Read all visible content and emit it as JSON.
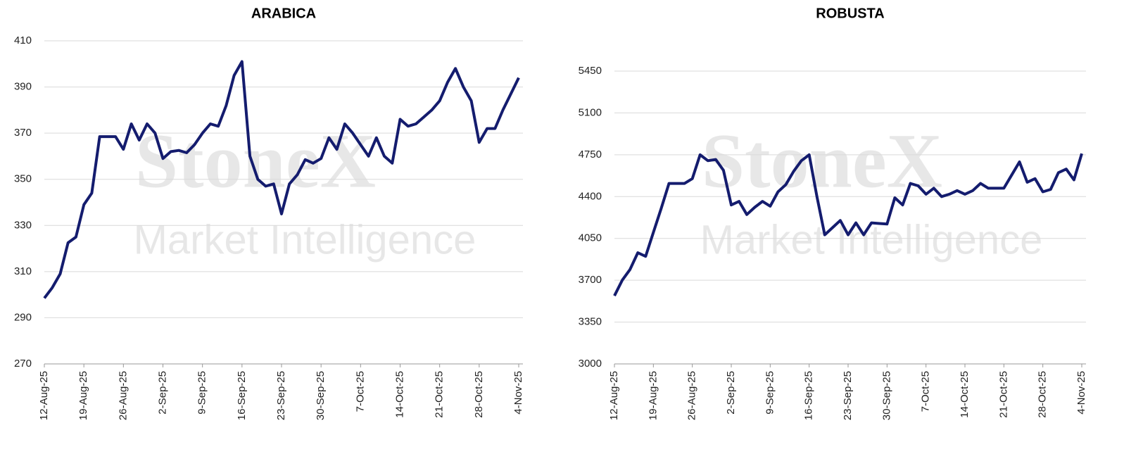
{
  "chart_data": [
    {
      "type": "line",
      "title": "ARABICA",
      "watermark": [
        "StoneX",
        "Market Intelligence"
      ],
      "categories": [
        "12-Aug-25",
        null,
        null,
        null,
        null,
        "19-Aug-25",
        null,
        null,
        null,
        null,
        "26-Aug-25",
        null,
        null,
        null,
        null,
        "2-Sep-25",
        null,
        null,
        null,
        null,
        "9-Sep-25",
        null,
        null,
        null,
        null,
        "16-Sep-25",
        null,
        null,
        null,
        null,
        "23-Sep-25",
        null,
        null,
        null,
        null,
        "30-Sep-25",
        null,
        null,
        null,
        null,
        "7-Oct-25",
        null,
        null,
        null,
        null,
        "14-Oct-25",
        null,
        null,
        null,
        null,
        "21-Oct-25",
        null,
        null,
        null,
        null,
        "28-Oct-25",
        null,
        null,
        null,
        null,
        "4-Nov-25"
      ],
      "series": [
        {
          "name": "Arabica",
          "color": "#141c6e",
          "values": [
            298.5,
            303,
            309,
            322.5,
            325,
            339,
            344,
            368.5,
            368.5,
            368.5,
            363,
            374,
            367,
            374,
            370,
            359,
            362,
            362.5,
            361.5,
            365,
            370,
            374,
            373,
            382,
            395,
            401,
            360,
            350,
            347,
            348,
            335,
            348,
            352,
            358.5,
            357,
            359,
            368,
            363,
            374,
            370,
            365,
            360,
            368,
            360,
            357,
            376,
            373,
            374,
            377,
            380,
            384,
            392,
            398,
            390,
            384,
            366,
            372,
            372,
            380,
            387,
            394
          ]
        }
      ],
      "ylim": [
        270,
        410
      ],
      "yticks": [
        270,
        290,
        310,
        330,
        350,
        370,
        390,
        410
      ],
      "grid": true
    },
    {
      "type": "line",
      "title": "ROBUSTA",
      "watermark": [
        "StoneX",
        "Market Intelligence"
      ],
      "categories": [
        "12-Aug-25",
        null,
        null,
        null,
        null,
        "19-Aug-25",
        null,
        null,
        null,
        null,
        "26-Aug-25",
        null,
        null,
        null,
        null,
        "2-Sep-25",
        null,
        null,
        null,
        null,
        "9-Sep-25",
        null,
        null,
        null,
        null,
        "16-Sep-25",
        null,
        null,
        null,
        null,
        "23-Sep-25",
        null,
        null,
        null,
        null,
        "30-Sep-25",
        null,
        null,
        null,
        null,
        "7-Oct-25",
        null,
        null,
        null,
        null,
        "14-Oct-25",
        null,
        null,
        null,
        null,
        "21-Oct-25",
        null,
        null,
        null,
        null,
        "28-Oct-25",
        null,
        null,
        null,
        null,
        "4-Nov-25"
      ],
      "series": [
        {
          "name": "Robusta",
          "color": "#141c6e",
          "values": [
            3570,
            3700,
            3790,
            3930,
            3900,
            4100,
            4300,
            4510,
            4510,
            4510,
            4550,
            4750,
            4700,
            4710,
            4620,
            4330,
            4360,
            4250,
            4310,
            4360,
            4320,
            4440,
            4500,
            4610,
            4700,
            4750,
            4400,
            4080,
            4140,
            4200,
            4080,
            4180,
            4080,
            4180,
            4175,
            4170,
            4390,
            4330,
            4510,
            4490,
            4420,
            4470,
            4400,
            4420,
            4450,
            4420,
            4450,
            4510,
            4470,
            4470,
            4470,
            4580,
            4690,
            4520,
            4550,
            4440,
            4460,
            4600,
            4630,
            4540,
            4760
          ]
        }
      ],
      "ylim": [
        3000,
        5450
      ],
      "yticks": [
        3000,
        3350,
        3700,
        4050,
        4400,
        4750,
        5100,
        5450
      ],
      "grid": true
    }
  ]
}
